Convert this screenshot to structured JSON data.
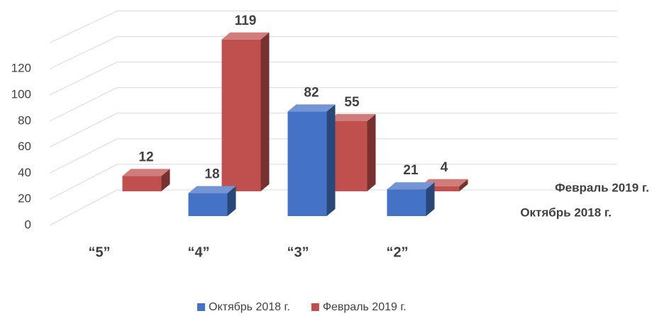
{
  "chart_data": {
    "type": "bar3d",
    "categories": [
      "“5”",
      "“4”",
      "“3”",
      "“2”"
    ],
    "series": [
      {
        "name": "Октябрь 2018 г.",
        "color": "#4472c4",
        "values": [
          null,
          18,
          82,
          21
        ]
      },
      {
        "name": "Февраль 2019 г.",
        "color": "#c0504d",
        "values": [
          12,
          119,
          55,
          4
        ]
      }
    ],
    "ylim": [
      0,
      140
    ],
    "yticks": [
      0,
      20,
      40,
      60,
      80,
      100,
      120
    ],
    "grid": true,
    "legend": "bottom"
  }
}
